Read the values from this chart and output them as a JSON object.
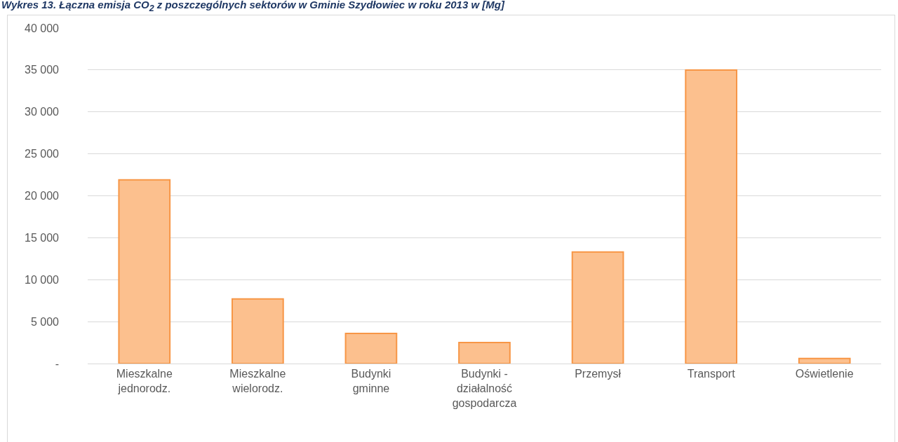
{
  "chart_data": {
    "type": "bar",
    "title": "Wykres 13. Łączna emisja CO$_{2}$ z poszczególnych sektorów w Gminie Szydłowiec w roku 2013 w [Mg]",
    "categories": [
      "Mieszkalne jednorodz.",
      "Mieszkalne wielorodz.",
      "Budynki gminne",
      "Budynki - działalność gospodarcza",
      "Przemysł",
      "Transport",
      "Oświetlenie"
    ],
    "values": [
      21900,
      7700,
      3600,
      2500,
      13300,
      35000,
      600
    ],
    "color": "#fcc08e",
    "ylim": [
      0,
      40000
    ],
    "yticks": [
      {
        "value": 0,
        "label": "-"
      },
      {
        "value": 5000,
        "label": "5 000"
      },
      {
        "value": 10000,
        "label": "10 000"
      },
      {
        "value": 15000,
        "label": "15 000"
      },
      {
        "value": 20000,
        "label": "20 000"
      },
      {
        "value": 25000,
        "label": "25 000"
      },
      {
        "value": 30000,
        "label": "30 000"
      },
      {
        "value": 35000,
        "label": "35 000"
      },
      {
        "value": 40000,
        "label": "40 000"
      }
    ],
    "grid": "y",
    "legend": false
  }
}
